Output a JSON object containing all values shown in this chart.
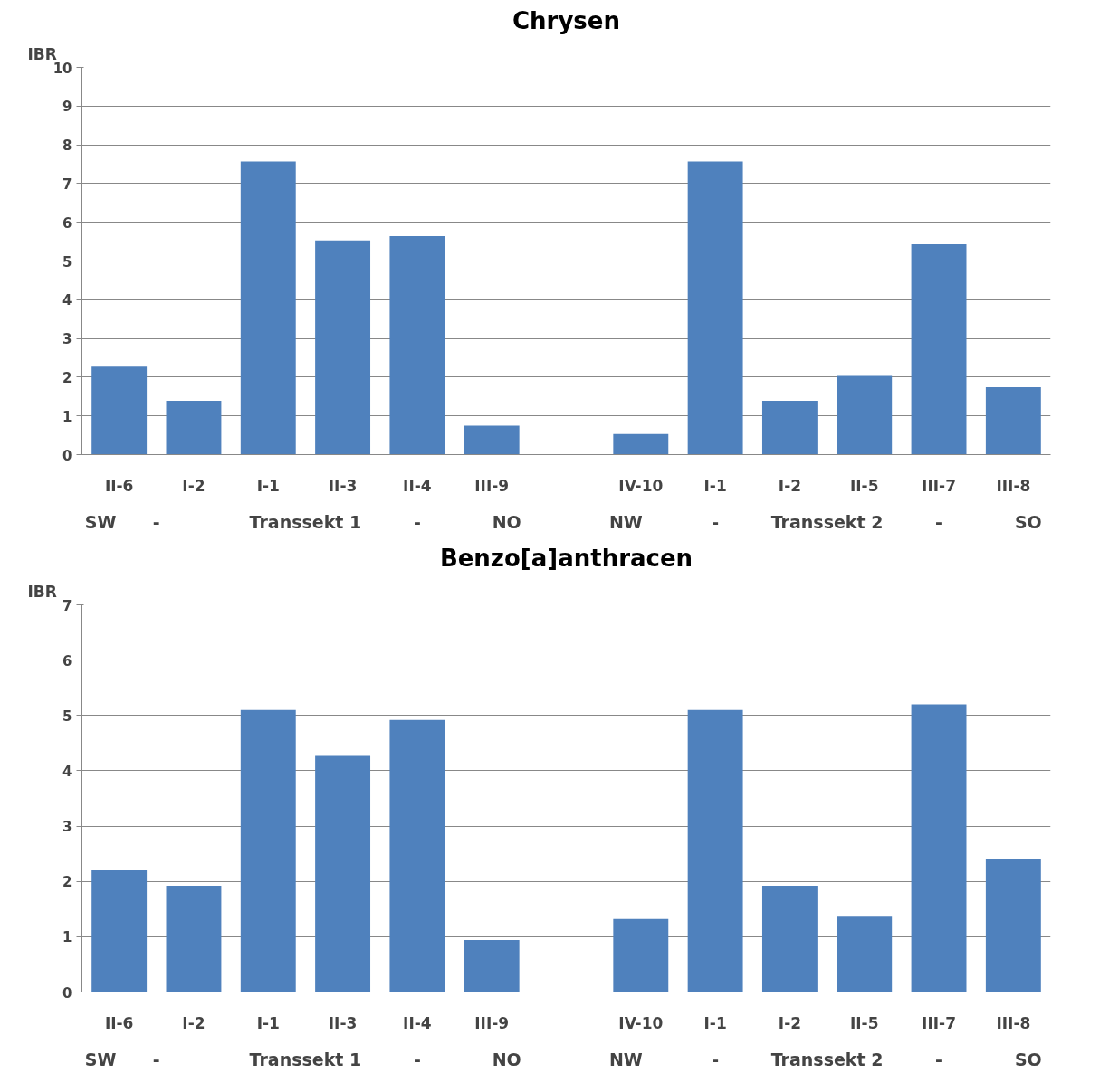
{
  "chart_data": [
    {
      "type": "bar",
      "title": "Chrysen",
      "ylabel": "IBR",
      "categories": [
        "II-6",
        "I-2",
        "I-1",
        "II-3",
        "II-4",
        "III-9",
        null,
        "IV-10",
        "I-1",
        "I-2",
        "II-5",
        "III-7",
        "III-8"
      ],
      "values": [
        2.27,
        1.39,
        7.57,
        5.53,
        5.64,
        0.75,
        null,
        0.53,
        7.57,
        1.39,
        2.03,
        5.43,
        1.74
      ],
      "color": "#4f81bd",
      "ylim": [
        0,
        10
      ],
      "yticks": [
        0,
        1,
        2,
        3,
        4,
        5,
        6,
        7,
        8,
        9,
        10
      ],
      "grid": "y",
      "annotations": [
        "SW",
        "-",
        "Transsekt 1",
        "-",
        "NO",
        "NW",
        "-",
        "Transsekt 2",
        "-",
        "SO"
      ]
    },
    {
      "type": "bar",
      "title": "Benzo[a]anthracen",
      "ylabel": "IBR",
      "categories": [
        "II-6",
        "I-2",
        "I-1",
        "II-3",
        "II-4",
        "III-9",
        null,
        "IV-10",
        "I-1",
        "I-2",
        "II-5",
        "III-7",
        "III-8"
      ],
      "values": [
        2.2,
        1.92,
        5.1,
        4.27,
        4.92,
        0.94,
        null,
        1.32,
        5.1,
        1.92,
        1.36,
        5.2,
        2.41
      ],
      "color": "#4f81bd",
      "ylim": [
        0,
        7
      ],
      "yticks": [
        0,
        1,
        2,
        3,
        4,
        5,
        6,
        7
      ],
      "grid": "y",
      "annotations": [
        "SW",
        "-",
        "Transsekt 1",
        "-",
        "NO",
        "NW",
        "-",
        "Transsekt 2",
        "-",
        "SO"
      ]
    }
  ]
}
